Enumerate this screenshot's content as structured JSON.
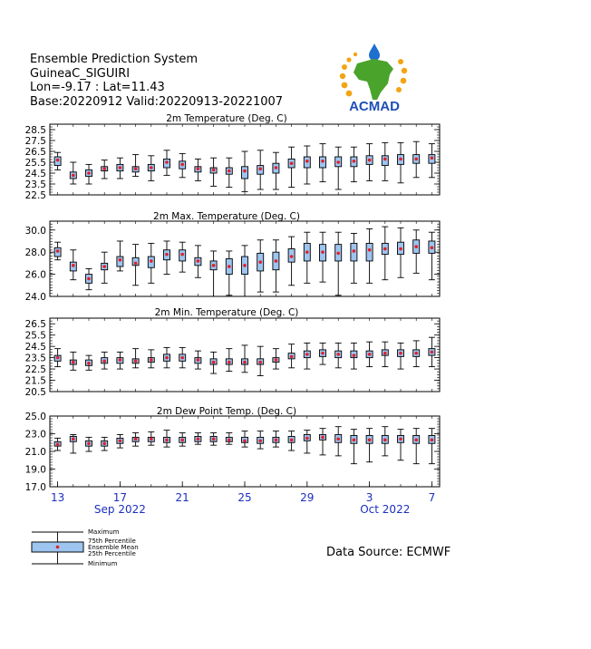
{
  "header": {
    "line1": "Ensemble Prediction System",
    "line2": "GuineaC_SIGUIRI",
    "line3": "Lon=-9.17 : Lat=11.43",
    "line4": "Base:20220912 Valid:20220913-20221007"
  },
  "logo": {
    "text": "ACMAD"
  },
  "source": "Data Source: ECMWF",
  "legend": {
    "maximum": "Maximum",
    "p75": "75th Percentile",
    "mean": "Ensemble Mean",
    "p25": "25th Percentile",
    "minimum": "Minimum"
  },
  "colors": {
    "box_fill": "#9ec5f0",
    "mean": "#e0202a",
    "axis_date": "#1b2fbf",
    "frame": "#000000"
  },
  "chart_data": {
    "type": "box",
    "x_tick_labels": [
      "13",
      "17",
      "21",
      "25",
      "29",
      "3",
      "7"
    ],
    "x_tick_days": [
      0,
      4,
      8,
      12,
      16,
      20,
      24
    ],
    "month_labels": [
      {
        "label": "Sep 2022",
        "day": 4
      },
      {
        "label": "Oct 2022",
        "day": 21
      }
    ],
    "dates": [
      "2022-09-13",
      "2022-09-14",
      "2022-09-15",
      "2022-09-16",
      "2022-09-17",
      "2022-09-18",
      "2022-09-19",
      "2022-09-20",
      "2022-09-21",
      "2022-09-22",
      "2022-09-23",
      "2022-09-24",
      "2022-09-25",
      "2022-09-26",
      "2022-09-27",
      "2022-09-28",
      "2022-09-29",
      "2022-09-30",
      "2022-10-01",
      "2022-10-02",
      "2022-10-03",
      "2022-10-04",
      "2022-10-05",
      "2022-10-06",
      "2022-10-07"
    ],
    "panels": [
      {
        "title": "2m Temperature (Deg. C)",
        "ylim": [
          22.5,
          29.0
        ],
        "yticks": [
          "22.5",
          "23.5",
          "24.5",
          "25.5",
          "26.5",
          "27.5",
          "28.5"
        ],
        "min": [
          24.8,
          23.5,
          23.5,
          24.0,
          24.0,
          24.2,
          23.8,
          24.3,
          24.1,
          23.8,
          23.3,
          23.2,
          22.8,
          23.0,
          23.0,
          23.2,
          23.5,
          23.7,
          23.0,
          23.7,
          23.8,
          23.8,
          23.6,
          24.1,
          24.1
        ],
        "p25": [
          25.2,
          24.0,
          24.2,
          24.7,
          24.7,
          24.6,
          24.7,
          25.0,
          24.9,
          24.6,
          24.5,
          24.4,
          24.0,
          24.4,
          24.5,
          25.0,
          25.0,
          25.0,
          25.1,
          25.1,
          25.3,
          25.2,
          25.3,
          25.4,
          25.4
        ],
        "mean": [
          25.7,
          24.3,
          24.5,
          24.9,
          25.0,
          24.9,
          25.0,
          25.5,
          25.3,
          24.9,
          24.8,
          24.7,
          24.7,
          24.9,
          25.0,
          25.4,
          25.6,
          25.6,
          25.5,
          25.6,
          25.7,
          25.8,
          25.8,
          25.8,
          25.9
        ],
        "p75": [
          26.0,
          24.6,
          24.8,
          25.1,
          25.3,
          25.1,
          25.3,
          25.8,
          25.6,
          25.1,
          25.0,
          25.0,
          25.1,
          25.2,
          25.4,
          25.8,
          26.0,
          26.0,
          26.0,
          26.0,
          26.1,
          26.1,
          26.2,
          26.2,
          26.2
        ],
        "max": [
          26.4,
          25.5,
          25.3,
          25.7,
          25.9,
          26.2,
          26.1,
          26.6,
          26.3,
          25.8,
          25.9,
          25.9,
          26.5,
          26.6,
          26.4,
          26.9,
          27.0,
          27.2,
          26.9,
          26.9,
          27.2,
          27.3,
          27.3,
          27.4,
          27.2
        ]
      },
      {
        "title": "2m Max. Temperature (Deg. C)",
        "ylim": [
          24.0,
          30.8
        ],
        "yticks": [
          "24.0",
          "26.0",
          "28.0",
          "30.0"
        ],
        "min": [
          27.3,
          25.5,
          24.6,
          25.2,
          26.3,
          25.0,
          25.2,
          26.0,
          26.2,
          25.7,
          24.0,
          24.1,
          24.0,
          24.4,
          24.4,
          25.0,
          25.2,
          25.3,
          24.1,
          25.2,
          25.2,
          25.5,
          25.7,
          26.1,
          25.5
        ],
        "p25": [
          27.6,
          26.3,
          25.2,
          26.4,
          26.7,
          26.8,
          26.6,
          27.3,
          27.2,
          26.8,
          26.4,
          26.0,
          26.0,
          26.3,
          26.4,
          27.1,
          27.2,
          27.2,
          27.2,
          27.2,
          27.2,
          27.8,
          27.8,
          27.9,
          27.9
        ],
        "mean": [
          28.1,
          26.8,
          25.6,
          26.7,
          27.3,
          27.0,
          27.2,
          27.8,
          27.8,
          27.2,
          26.8,
          26.7,
          26.8,
          27.1,
          27.2,
          27.6,
          28.0,
          28.0,
          27.9,
          28.1,
          28.2,
          28.3,
          28.3,
          28.5,
          28.4
        ],
        "p75": [
          28.4,
          27.1,
          26.0,
          27.0,
          27.6,
          27.5,
          27.6,
          28.2,
          28.2,
          27.5,
          27.2,
          27.4,
          27.6,
          27.9,
          28.0,
          28.3,
          28.8,
          28.7,
          28.7,
          28.8,
          28.8,
          28.8,
          28.9,
          29.1,
          29.0
        ],
        "max": [
          28.9,
          28.2,
          26.5,
          28.0,
          29.0,
          28.7,
          28.8,
          29.0,
          28.9,
          28.6,
          28.1,
          28.1,
          28.6,
          29.1,
          29.1,
          29.4,
          29.8,
          29.8,
          29.8,
          29.7,
          30.1,
          30.3,
          30.2,
          30.0,
          29.8
        ]
      },
      {
        "title": "2m Min. Temperature (Deg. C)",
        "ylim": [
          20.5,
          27.0
        ],
        "yticks": [
          "20.5",
          "21.5",
          "22.5",
          "23.5",
          "24.5",
          "25.5",
          "26.5"
        ],
        "min": [
          22.7,
          22.4,
          22.4,
          22.5,
          22.5,
          22.6,
          22.6,
          22.6,
          22.6,
          22.5,
          22.1,
          22.3,
          22.2,
          21.9,
          22.5,
          22.6,
          22.5,
          22.9,
          22.6,
          22.5,
          22.7,
          22.7,
          22.5,
          22.7,
          22.7
        ],
        "p25": [
          23.2,
          22.9,
          22.8,
          23.0,
          23.0,
          23.0,
          23.1,
          23.2,
          23.2,
          23.0,
          22.9,
          22.9,
          22.9,
          22.9,
          23.1,
          23.4,
          23.5,
          23.6,
          23.5,
          23.5,
          23.5,
          23.7,
          23.6,
          23.6,
          23.7
        ],
        "mean": [
          23.5,
          23.1,
          23.0,
          23.2,
          23.3,
          23.2,
          23.3,
          23.5,
          23.5,
          23.3,
          23.1,
          23.1,
          23.1,
          23.1,
          23.3,
          23.6,
          23.8,
          23.9,
          23.8,
          23.7,
          23.8,
          23.9,
          23.9,
          23.9,
          24.0
        ],
        "p75": [
          23.7,
          23.3,
          23.3,
          23.5,
          23.5,
          23.4,
          23.5,
          23.8,
          23.8,
          23.5,
          23.4,
          23.4,
          23.4,
          23.4,
          23.5,
          23.9,
          24.1,
          24.2,
          24.1,
          24.1,
          24.1,
          24.2,
          24.2,
          24.2,
          24.3
        ],
        "max": [
          24.3,
          24.0,
          23.7,
          24.0,
          24.0,
          24.3,
          24.2,
          24.4,
          24.4,
          24.1,
          24.0,
          24.3,
          24.6,
          24.5,
          24.3,
          24.7,
          24.8,
          24.8,
          24.8,
          24.8,
          24.9,
          24.9,
          24.8,
          25.0,
          25.3
        ]
      },
      {
        "title": "2m Dew Point Temp. (Deg. C)",
        "ylim": [
          17.0,
          25.0
        ],
        "yticks": [
          "17.0",
          "19.0",
          "21.0",
          "23.0",
          "25.0"
        ],
        "min": [
          21.1,
          20.8,
          21.0,
          21.1,
          21.4,
          21.6,
          21.7,
          21.5,
          21.6,
          21.8,
          21.7,
          21.8,
          21.5,
          21.3,
          21.5,
          21.1,
          20.8,
          20.6,
          20.5,
          19.6,
          19.8,
          20.5,
          20.0,
          19.6,
          19.6
        ],
        "p25": [
          21.6,
          22.1,
          21.6,
          21.6,
          21.9,
          22.1,
          22.1,
          22.0,
          22.0,
          22.1,
          22.1,
          22.1,
          22.0,
          21.9,
          22.0,
          22.0,
          22.2,
          22.3,
          22.0,
          21.9,
          21.9,
          21.9,
          22.0,
          21.9,
          21.9
        ],
        "mean": [
          21.8,
          22.4,
          21.9,
          21.9,
          22.2,
          22.4,
          22.4,
          22.3,
          22.3,
          22.4,
          22.4,
          22.3,
          22.2,
          22.2,
          22.3,
          22.3,
          22.5,
          22.6,
          22.4,
          22.3,
          22.3,
          22.3,
          22.4,
          22.3,
          22.3
        ],
        "p75": [
          22.1,
          22.7,
          22.2,
          22.2,
          22.5,
          22.6,
          22.6,
          22.6,
          22.6,
          22.7,
          22.7,
          22.6,
          22.6,
          22.6,
          22.6,
          22.7,
          22.9,
          22.9,
          22.9,
          22.8,
          22.8,
          22.8,
          22.8,
          22.8,
          22.8
        ],
        "max": [
          22.5,
          22.9,
          22.6,
          22.6,
          22.9,
          23.1,
          23.2,
          23.4,
          23.1,
          23.1,
          23.1,
          23.1,
          23.3,
          23.3,
          23.3,
          23.3,
          23.4,
          23.6,
          23.8,
          23.5,
          23.6,
          23.8,
          23.5,
          23.6,
          23.6
        ]
      }
    ]
  }
}
